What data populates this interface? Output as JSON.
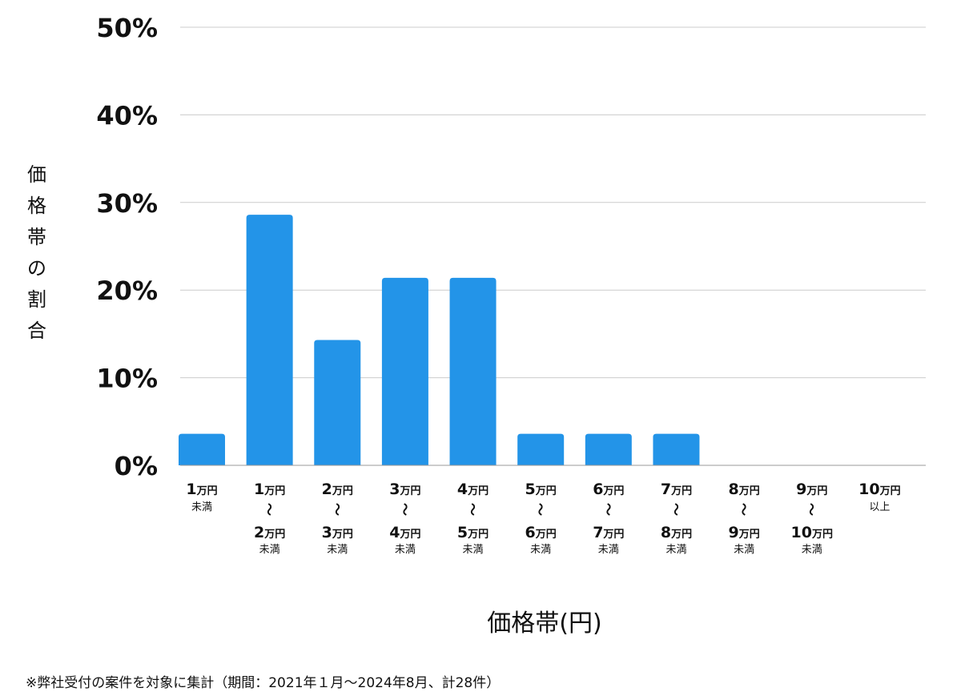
{
  "chart_data": {
    "type": "bar",
    "ylabel": "価格帯の割合",
    "xlabel": "価格帯(円)",
    "ylim": [
      0,
      50
    ],
    "yticks": [
      0,
      10,
      20,
      30,
      40,
      50
    ],
    "ytick_suffix": "%",
    "grid": true,
    "bar_color": "#2394e8",
    "categories": [
      {
        "from": "1",
        "to": "",
        "suffix": "未満"
      },
      {
        "from": "1",
        "to": "2",
        "suffix": "未満"
      },
      {
        "from": "2",
        "to": "3",
        "suffix": "未満"
      },
      {
        "from": "3",
        "to": "4",
        "suffix": "未満"
      },
      {
        "from": "4",
        "to": "5",
        "suffix": "未満"
      },
      {
        "from": "5",
        "to": "6",
        "suffix": "未満"
      },
      {
        "from": "6",
        "to": "7",
        "suffix": "未満"
      },
      {
        "from": "7",
        "to": "8",
        "suffix": "未満"
      },
      {
        "from": "8",
        "to": "9",
        "suffix": "未満"
      },
      {
        "from": "9",
        "to": "10",
        "suffix": "未満"
      },
      {
        "from": "10",
        "to": "",
        "suffix": "以上"
      }
    ],
    "unit": "万円",
    "range_mark": "〜",
    "values": [
      3.6,
      28.6,
      14.3,
      21.4,
      21.4,
      3.6,
      3.6,
      3.6,
      0,
      0,
      0
    ]
  },
  "footnote": "※弊社受付の案件を対象に集計（期間：2021年１月〜2024年8月、計28件）"
}
